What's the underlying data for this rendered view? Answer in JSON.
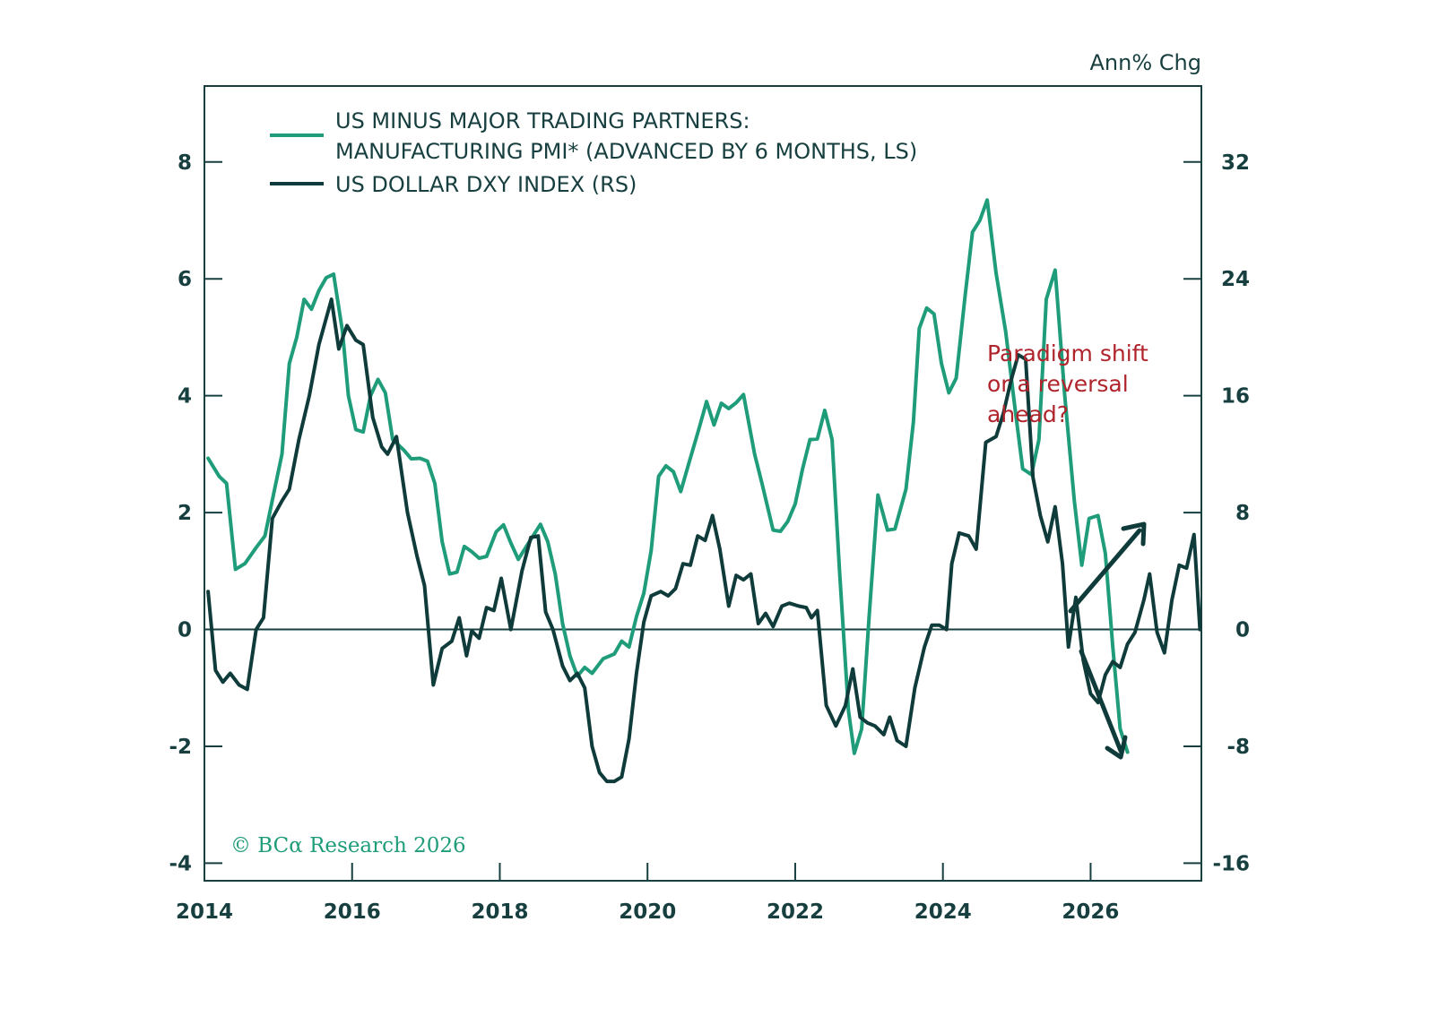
{
  "chart_data": {
    "type": "line",
    "title": "",
    "unit_label": "Ann% Chg",
    "xlabel": "",
    "x_ticks": [
      "2014",
      "2016",
      "2018",
      "2020",
      "2022",
      "2024",
      "2026"
    ],
    "x_tick_values": [
      2014,
      2016,
      2018,
      2020,
      2022,
      2024,
      2026
    ],
    "xlim": [
      2014,
      2027.5
    ],
    "left_axis": {
      "ylim": [
        -4.3,
        9.3
      ],
      "ticks": [
        -4,
        -2,
        0,
        2,
        4,
        6,
        8
      ],
      "tick_labels": [
        "-4",
        "-2",
        "0",
        "2",
        "4",
        "6",
        "8"
      ]
    },
    "right_axis": {
      "ylim": [
        -17.2,
        37.2
      ],
      "ticks": [
        -16,
        -8,
        0,
        8,
        16,
        24,
        32
      ],
      "tick_labels": [
        "-16",
        "-8",
        "0",
        "8",
        "16",
        "24",
        "32"
      ]
    },
    "zero_line": true,
    "grid": false,
    "legend": {
      "placement": "top-left",
      "entries": [
        {
          "line1": "US MINUS MAJOR TRADING PARTNERS:",
          "line2": "MANUFACTURING PMI* (ADVANCED BY 6 MONTHS, LS)",
          "color": "#1f9c7a"
        },
        {
          "line1": "US DOLLAR DXY INDEX (RS)",
          "line2": "",
          "color": "#0f3b3a"
        }
      ]
    },
    "series": [
      {
        "name": "US minus major trading partners: Manufacturing PMI (advanced by 6 months, LS)",
        "axis": "left",
        "color": "#1f9c7a",
        "points": [
          [
            2014.05,
            2.93
          ],
          [
            2014.2,
            2.62
          ],
          [
            2014.3,
            2.5
          ],
          [
            2014.42,
            1.03
          ],
          [
            2014.55,
            1.13
          ],
          [
            2014.7,
            1.4
          ],
          [
            2014.82,
            1.6
          ],
          [
            2014.95,
            2.4
          ],
          [
            2015.05,
            3.0
          ],
          [
            2015.15,
            4.55
          ],
          [
            2015.25,
            5.0
          ],
          [
            2015.35,
            5.65
          ],
          [
            2015.45,
            5.48
          ],
          [
            2015.55,
            5.8
          ],
          [
            2015.65,
            6.02
          ],
          [
            2015.75,
            6.08
          ],
          [
            2015.87,
            5.1
          ],
          [
            2015.95,
            4.0
          ],
          [
            2016.05,
            3.42
          ],
          [
            2016.15,
            3.38
          ],
          [
            2016.25,
            4.0
          ],
          [
            2016.35,
            4.28
          ],
          [
            2016.45,
            4.05
          ],
          [
            2016.55,
            3.25
          ],
          [
            2016.7,
            3.07
          ],
          [
            2016.8,
            2.92
          ],
          [
            2016.92,
            2.93
          ],
          [
            2017.02,
            2.88
          ],
          [
            2017.12,
            2.5
          ],
          [
            2017.22,
            1.5
          ],
          [
            2017.32,
            0.95
          ],
          [
            2017.42,
            0.98
          ],
          [
            2017.52,
            1.42
          ],
          [
            2017.62,
            1.33
          ],
          [
            2017.72,
            1.22
          ],
          [
            2017.82,
            1.25
          ],
          [
            2017.95,
            1.67
          ],
          [
            2018.05,
            1.79
          ],
          [
            2018.15,
            1.48
          ],
          [
            2018.25,
            1.2
          ],
          [
            2018.4,
            1.5
          ],
          [
            2018.55,
            1.8
          ],
          [
            2018.65,
            1.5
          ],
          [
            2018.75,
            0.95
          ],
          [
            2018.85,
            0.1
          ],
          [
            2018.95,
            -0.45
          ],
          [
            2019.05,
            -0.8
          ],
          [
            2019.15,
            -0.65
          ],
          [
            2019.25,
            -0.75
          ],
          [
            2019.4,
            -0.5
          ],
          [
            2019.55,
            -0.42
          ],
          [
            2019.65,
            -0.2
          ],
          [
            2019.75,
            -0.3
          ],
          [
            2019.85,
            0.22
          ],
          [
            2019.95,
            0.62
          ],
          [
            2020.05,
            1.35
          ],
          [
            2020.15,
            2.62
          ],
          [
            2020.25,
            2.8
          ],
          [
            2020.35,
            2.7
          ],
          [
            2020.45,
            2.36
          ],
          [
            2020.55,
            2.8
          ],
          [
            2020.7,
            3.45
          ],
          [
            2020.8,
            3.9
          ],
          [
            2020.9,
            3.5
          ],
          [
            2021.0,
            3.87
          ],
          [
            2021.1,
            3.78
          ],
          [
            2021.2,
            3.88
          ],
          [
            2021.3,
            4.02
          ],
          [
            2021.45,
            3.0
          ],
          [
            2021.55,
            2.5
          ],
          [
            2021.7,
            1.7
          ],
          [
            2021.8,
            1.68
          ],
          [
            2021.9,
            1.85
          ],
          [
            2022.0,
            2.15
          ],
          [
            2022.1,
            2.75
          ],
          [
            2022.2,
            3.25
          ],
          [
            2022.3,
            3.26
          ],
          [
            2022.4,
            3.75
          ],
          [
            2022.5,
            3.25
          ],
          [
            2022.6,
            1.0
          ],
          [
            2022.72,
            -1.38
          ],
          [
            2022.8,
            -2.12
          ],
          [
            2022.9,
            -1.7
          ],
          [
            2023.0,
            0.2
          ],
          [
            2023.12,
            2.3
          ],
          [
            2023.25,
            1.7
          ],
          [
            2023.35,
            1.72
          ],
          [
            2023.5,
            2.4
          ],
          [
            2023.6,
            3.55
          ],
          [
            2023.68,
            5.15
          ],
          [
            2023.78,
            5.5
          ],
          [
            2023.88,
            5.4
          ],
          [
            2023.98,
            4.55
          ],
          [
            2024.08,
            4.05
          ],
          [
            2024.18,
            4.3
          ],
          [
            2024.3,
            5.7
          ],
          [
            2024.4,
            6.8
          ],
          [
            2024.5,
            7.0
          ],
          [
            2024.6,
            7.35
          ],
          [
            2024.72,
            6.1
          ],
          [
            2024.85,
            5.1
          ],
          [
            2024.98,
            3.75
          ],
          [
            2025.08,
            2.75
          ],
          [
            2025.2,
            2.65
          ],
          [
            2025.3,
            3.25
          ],
          [
            2025.4,
            5.65
          ],
          [
            2025.52,
            6.15
          ],
          [
            2025.65,
            4.0
          ],
          [
            2025.78,
            2.2
          ],
          [
            2025.88,
            1.1
          ],
          [
            2025.98,
            1.9
          ],
          [
            2026.1,
            1.95
          ],
          [
            2026.2,
            1.3
          ],
          [
            2026.3,
            -0.3
          ],
          [
            2026.4,
            -1.7
          ],
          [
            2026.5,
            -2.1
          ]
        ]
      },
      {
        "name": "US Dollar DXY index (RS)",
        "axis": "right",
        "color": "#0f3b3a",
        "points": [
          [
            2014.05,
            2.6
          ],
          [
            2014.15,
            -2.8
          ],
          [
            2014.25,
            -3.6
          ],
          [
            2014.35,
            -3.0
          ],
          [
            2014.47,
            -3.8
          ],
          [
            2014.58,
            -4.1
          ],
          [
            2014.7,
            0.0
          ],
          [
            2014.8,
            0.8
          ],
          [
            2014.92,
            7.6
          ],
          [
            2015.05,
            8.8
          ],
          [
            2015.15,
            9.6
          ],
          [
            2015.28,
            13.0
          ],
          [
            2015.42,
            16.0
          ],
          [
            2015.55,
            19.5
          ],
          [
            2015.72,
            22.6
          ],
          [
            2015.82,
            19.2
          ],
          [
            2015.93,
            20.8
          ],
          [
            2016.05,
            19.8
          ],
          [
            2016.15,
            19.5
          ],
          [
            2016.28,
            14.5
          ],
          [
            2016.4,
            12.5
          ],
          [
            2016.48,
            12.0
          ],
          [
            2016.6,
            13.2
          ],
          [
            2016.75,
            8.0
          ],
          [
            2016.88,
            5.0
          ],
          [
            2016.98,
            3.0
          ],
          [
            2017.1,
            -3.8
          ],
          [
            2017.22,
            -1.3
          ],
          [
            2017.35,
            -0.8
          ],
          [
            2017.45,
            0.8
          ],
          [
            2017.55,
            -1.8
          ],
          [
            2017.62,
            -0.1
          ],
          [
            2017.72,
            -0.6
          ],
          [
            2017.82,
            1.5
          ],
          [
            2017.92,
            1.3
          ],
          [
            2018.02,
            3.5
          ],
          [
            2018.15,
            0.0
          ],
          [
            2018.3,
            4.0
          ],
          [
            2018.42,
            6.3
          ],
          [
            2018.52,
            6.4
          ],
          [
            2018.62,
            1.2
          ],
          [
            2018.72,
            0.0
          ],
          [
            2018.85,
            -2.5
          ],
          [
            2018.95,
            -3.5
          ],
          [
            2019.05,
            -3.0
          ],
          [
            2019.15,
            -4.0
          ],
          [
            2019.25,
            -8.0
          ],
          [
            2019.35,
            -9.8
          ],
          [
            2019.45,
            -10.4
          ],
          [
            2019.55,
            -10.4
          ],
          [
            2019.65,
            -10.1
          ],
          [
            2019.75,
            -7.5
          ],
          [
            2019.85,
            -3.0
          ],
          [
            2019.95,
            0.5
          ],
          [
            2020.05,
            2.3
          ],
          [
            2020.18,
            2.6
          ],
          [
            2020.28,
            2.3
          ],
          [
            2020.38,
            2.8
          ],
          [
            2020.48,
            4.5
          ],
          [
            2020.58,
            4.4
          ],
          [
            2020.68,
            6.4
          ],
          [
            2020.78,
            6.1
          ],
          [
            2020.88,
            7.8
          ],
          [
            2020.98,
            5.5
          ],
          [
            2021.1,
            1.6
          ],
          [
            2021.2,
            3.7
          ],
          [
            2021.3,
            3.4
          ],
          [
            2021.4,
            3.8
          ],
          [
            2021.5,
            0.4
          ],
          [
            2021.6,
            1.1
          ],
          [
            2021.7,
            0.2
          ],
          [
            2021.82,
            1.6
          ],
          [
            2021.92,
            1.8
          ],
          [
            2022.05,
            1.6
          ],
          [
            2022.15,
            1.5
          ],
          [
            2022.22,
            0.8
          ],
          [
            2022.3,
            1.3
          ],
          [
            2022.42,
            -5.2
          ],
          [
            2022.55,
            -6.6
          ],
          [
            2022.68,
            -5.2
          ],
          [
            2022.78,
            -2.7
          ],
          [
            2022.88,
            -6.0
          ],
          [
            2022.98,
            -6.4
          ],
          [
            2023.08,
            -6.6
          ],
          [
            2023.2,
            -7.2
          ],
          [
            2023.28,
            -6.0
          ],
          [
            2023.38,
            -7.6
          ],
          [
            2023.5,
            -8.0
          ],
          [
            2023.62,
            -4.0
          ],
          [
            2023.75,
            -1.2
          ],
          [
            2023.85,
            0.3
          ],
          [
            2023.95,
            0.3
          ],
          [
            2024.05,
            0.0
          ],
          [
            2024.12,
            4.5
          ],
          [
            2024.22,
            6.6
          ],
          [
            2024.35,
            6.4
          ],
          [
            2024.45,
            5.5
          ],
          [
            2024.58,
            12.8
          ],
          [
            2024.72,
            13.2
          ],
          [
            2024.82,
            14.8
          ],
          [
            2024.92,
            17.0
          ],
          [
            2025.02,
            18.8
          ],
          [
            2025.12,
            18.5
          ],
          [
            2025.22,
            10.4
          ],
          [
            2025.32,
            7.8
          ],
          [
            2025.42,
            6.0
          ],
          [
            2025.52,
            8.4
          ],
          [
            2025.62,
            4.5
          ],
          [
            2025.7,
            -1.2
          ],
          [
            2025.8,
            2.2
          ],
          [
            2025.9,
            -2.1
          ],
          [
            2026.0,
            -4.4
          ],
          [
            2026.1,
            -5.0
          ],
          [
            2026.2,
            -3.1
          ],
          [
            2026.3,
            -2.2
          ],
          [
            2026.4,
            -2.6
          ],
          [
            2026.5,
            -1.0
          ],
          [
            2026.6,
            -0.2
          ],
          [
            2026.72,
            2.0
          ],
          [
            2026.8,
            3.8
          ],
          [
            2026.9,
            -0.2
          ],
          [
            2027.0,
            -1.6
          ],
          [
            2027.1,
            2.0
          ],
          [
            2027.2,
            4.4
          ],
          [
            2027.3,
            4.2
          ],
          [
            2027.4,
            6.5
          ],
          [
            2027.48,
            0.0
          ]
        ]
      }
    ],
    "annotations": {
      "text_lines": [
        "Paradigm shift",
        "or a reversal",
        "ahead?"
      ],
      "color": "#b0242c",
      "arrows": [
        {
          "direction": "up-right",
          "meaning": "paradigm shift"
        },
        {
          "direction": "down-right",
          "meaning": "reversal"
        }
      ]
    },
    "copyright": "© BCα Research 2026"
  }
}
